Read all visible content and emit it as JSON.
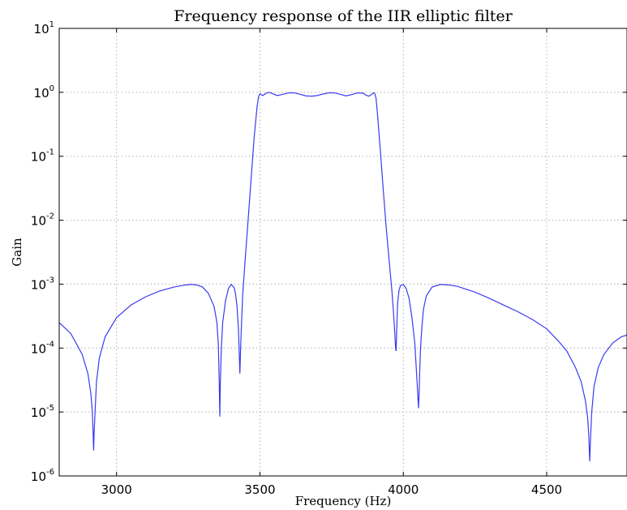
{
  "chart_data": {
    "type": "line",
    "title": "Frequency response of the IIR elliptic filter",
    "xlabel": "Frequency (Hz)",
    "ylabel": "Gain",
    "xscale": "linear",
    "yscale": "log",
    "xlim": [
      2800,
      4780
    ],
    "ylim": [
      1e-06,
      10
    ],
    "grid": true,
    "x_ticks": [
      3000,
      3500,
      4000,
      4500
    ],
    "x_tick_labels": [
      "3000",
      "3500",
      "4000",
      "4500"
    ],
    "y_ticks": [
      {
        "value": 1e-06,
        "base": "10",
        "exp": "-6"
      },
      {
        "value": 1e-05,
        "base": "10",
        "exp": "-5"
      },
      {
        "value": 0.0001,
        "base": "10",
        "exp": "-4"
      },
      {
        "value": 0.001,
        "base": "10",
        "exp": "-3"
      },
      {
        "value": 0.01,
        "base": "10",
        "exp": "-2"
      },
      {
        "value": 0.1,
        "base": "10",
        "exp": "-1"
      },
      {
        "value": 1,
        "base": "10",
        "exp": "0"
      },
      {
        "value": 10,
        "base": "10",
        "exp": "1"
      }
    ],
    "colors": {
      "series": "#3a3af2",
      "grid": "#b0b0b0",
      "axes": "#000000"
    },
    "series": [
      {
        "x": [
          2800,
          2840,
          2880,
          2900,
          2910,
          2915,
          2918,
          2920,
          2922,
          2925,
          2930,
          2940,
          2960,
          3000,
          3050,
          3100,
          3150,
          3200,
          3240,
          3260,
          3280,
          3300,
          3320,
          3340,
          3350,
          3355,
          3358,
          3360,
          3362,
          3365,
          3370,
          3380,
          3390,
          3400,
          3410,
          3415,
          3420,
          3425,
          3428,
          3430,
          3432,
          3435,
          3440,
          3450,
          3460,
          3470,
          3480,
          3490,
          3495,
          3500,
          3510,
          3520,
          3530,
          3540,
          3560,
          3580,
          3600,
          3620,
          3640,
          3660,
          3680,
          3700,
          3720,
          3740,
          3760,
          3780,
          3800,
          3820,
          3840,
          3860,
          3870,
          3880,
          3890,
          3895,
          3900,
          3905,
          3910,
          3920,
          3930,
          3940,
          3950,
          3960,
          3965,
          3970,
          3973,
          3975,
          3977,
          3980,
          3985,
          3990,
          4000,
          4010,
          4020,
          4030,
          4040,
          4045,
          4050,
          4053,
          4055,
          4057,
          4060,
          4065,
          4070,
          4080,
          4100,
          4130,
          4160,
          4190,
          4250,
          4300,
          4350,
          4400,
          4450,
          4500,
          4540,
          4570,
          4600,
          4620,
          4635,
          4643,
          4647,
          4650,
          4653,
          4657,
          4665,
          4680,
          4700,
          4730,
          4760,
          4780
        ],
        "y": [
          0.00025,
          0.00017,
          8e-05,
          4e-05,
          2e-05,
          1.1e-05,
          5e-06,
          2.5e-06,
          5e-06,
          1e-05,
          3e-05,
          7e-05,
          0.00015,
          0.0003,
          0.00047,
          0.00063,
          0.00078,
          0.0009,
          0.00097,
          0.00099,
          0.00097,
          0.0009,
          0.00072,
          0.00045,
          0.00025,
          0.00011,
          3e-05,
          8.5e-06,
          3e-05,
          9e-05,
          0.00025,
          0.00055,
          0.00085,
          0.00099,
          0.00088,
          0.0007,
          0.00045,
          0.0002,
          8e-05,
          4e-05,
          8e-05,
          0.0002,
          0.0007,
          0.003,
          0.012,
          0.05,
          0.2,
          0.6,
          0.85,
          0.95,
          0.89,
          0.96,
          1.0,
          0.97,
          0.89,
          0.93,
          0.98,
          0.98,
          0.93,
          0.88,
          0.87,
          0.89,
          0.94,
          0.98,
          0.98,
          0.93,
          0.88,
          0.92,
          0.98,
          0.97,
          0.9,
          0.87,
          0.93,
          0.98,
          0.97,
          0.8,
          0.45,
          0.12,
          0.03,
          0.008,
          0.0025,
          0.0008,
          0.0004,
          0.00018,
          0.0001,
          9e-05,
          0.0002,
          0.0005,
          0.0008,
          0.00095,
          0.00099,
          0.00085,
          0.0006,
          0.0003,
          0.00012,
          5e-05,
          2e-05,
          1.15e-05,
          2e-05,
          4e-05,
          0.0001,
          0.00022,
          0.0004,
          0.00065,
          0.0009,
          0.00099,
          0.00097,
          0.00092,
          0.00075,
          0.0006,
          0.00047,
          0.00037,
          0.00028,
          0.0002,
          0.00013,
          9e-05,
          5e-05,
          3e-05,
          1.5e-05,
          8e-06,
          4e-06,
          1.7e-06,
          4e-06,
          1e-05,
          2.5e-05,
          5e-05,
          8e-05,
          0.00012,
          0.00015,
          0.00016
        ]
      }
    ]
  }
}
